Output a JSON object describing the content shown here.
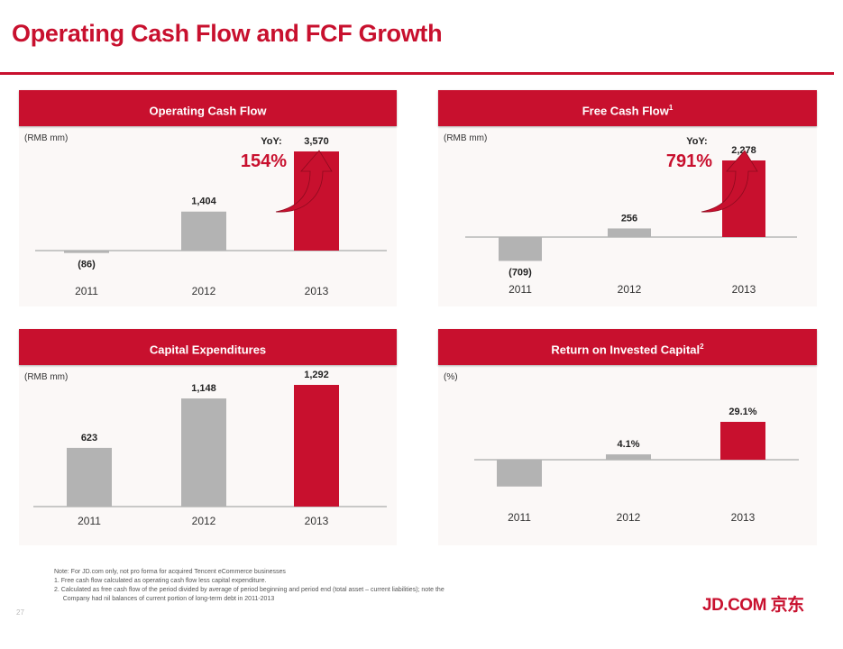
{
  "slide": {
    "title": "Operating Cash Flow and FCF Growth",
    "page_number": "27",
    "logo_text": "JD.COM 京东",
    "colors": {
      "brand_red": "#c8102e",
      "bar_gray": "#b3b3b3",
      "panel_bg": "#fbf8f7",
      "axis": "#aaaaaa"
    },
    "notes": [
      "Note: For JD.com only, not pro forma for acquired Tencent eCommerce businesses",
      "1.  Free cash flow calculated as operating cash flow less capital expenditure.",
      "2.  Calculated as free cash flow of the period divided by average of period beginning and period end (total asset – current liabilities); note the",
      "     Company had nil balances of current portion of long-term debt in 2011-2013"
    ]
  },
  "chart_data": [
    {
      "type": "bar",
      "title": "Operating Cash Flow",
      "title_superscript": "",
      "unit": "(RMB mm)",
      "categories": [
        "2011",
        "2012",
        "2013"
      ],
      "values": [
        -86,
        1404,
        3570
      ],
      "labels": [
        "(86)",
        "1,404",
        "3,570"
      ],
      "highlight": [
        false,
        false,
        true
      ],
      "yoy": {
        "label": "YoY:",
        "value": "154%"
      },
      "xlabel": "",
      "ylabel": "",
      "grid": false,
      "legend": "none"
    },
    {
      "type": "bar",
      "title": "Free Cash Flow",
      "title_superscript": "1",
      "unit": "(RMB mm)",
      "categories": [
        "2011",
        "2012",
        "2013"
      ],
      "values": [
        -709,
        256,
        2278
      ],
      "labels": [
        "(709)",
        "256",
        "2,278"
      ],
      "highlight": [
        false,
        false,
        true
      ],
      "yoy": {
        "label": "YoY:",
        "value": "791%"
      },
      "xlabel": "",
      "ylabel": "",
      "grid": false,
      "legend": "none"
    },
    {
      "type": "bar",
      "title": "Capital Expenditures",
      "title_superscript": "",
      "unit": "(RMB mm)",
      "categories": [
        "2011",
        "2012",
        "2013"
      ],
      "values": [
        623,
        1148,
        1292
      ],
      "labels": [
        "623",
        "1,148",
        "1,292"
      ],
      "highlight": [
        false,
        false,
        true
      ],
      "yoy": null,
      "xlabel": "",
      "ylabel": "",
      "grid": false,
      "legend": "none"
    },
    {
      "type": "bar",
      "title": "Return on Invested Capital",
      "title_superscript": "2",
      "unit": "(%)",
      "categories": [
        "2011",
        "2012",
        "2013"
      ],
      "values": [
        -20.6,
        4.1,
        29.1
      ],
      "labels": [
        "",
        "4.1%",
        "29.1%"
      ],
      "highlight": [
        false,
        false,
        true
      ],
      "yoy": null,
      "xlabel": "",
      "ylabel": "",
      "grid": false,
      "legend": "none"
    }
  ]
}
